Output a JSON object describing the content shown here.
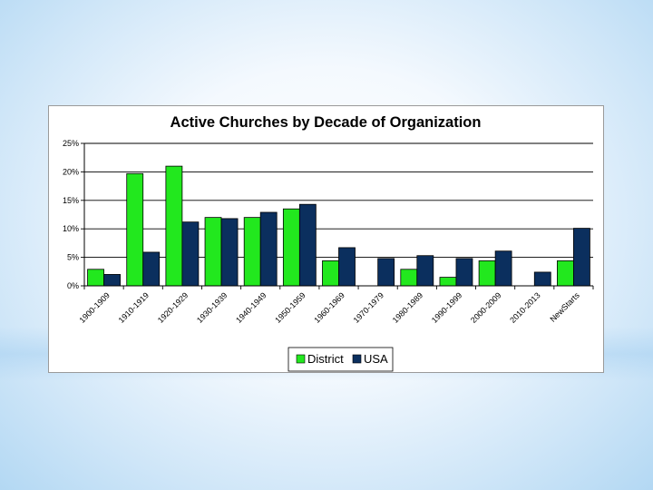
{
  "chart_data": {
    "type": "bar",
    "title": "Active Churches by Decade of Organization",
    "xlabel": "",
    "ylabel": "",
    "categories": [
      "1900-1909",
      "1910-1919",
      "1920-1929",
      "1930-1939",
      "1940-1949",
      "1950-1959",
      "1960-1969",
      "1970-1979",
      "1980-1989",
      "1990-1999",
      "2000-2009",
      "2010-2013",
      "NewStarts"
    ],
    "series": [
      {
        "name": "District",
        "color": "#22e81e",
        "values": [
          2.9,
          19.7,
          21.0,
          12.0,
          12.0,
          13.5,
          4.4,
          0,
          2.9,
          1.5,
          4.4,
          0,
          4.4
        ]
      },
      {
        "name": "USA",
        "color": "#0b2f5e",
        "values": [
          2.0,
          5.9,
          11.2,
          11.8,
          12.9,
          14.3,
          6.7,
          4.8,
          5.3,
          4.8,
          6.1,
          2.4,
          10.1
        ]
      }
    ],
    "ylim": [
      0,
      25
    ],
    "yticks": [
      0,
      5,
      10,
      15,
      20,
      25
    ],
    "ytick_labels": [
      "0%",
      "5%",
      "10%",
      "15%",
      "20%",
      "25%"
    ],
    "grid": true,
    "legend": "bottom"
  }
}
